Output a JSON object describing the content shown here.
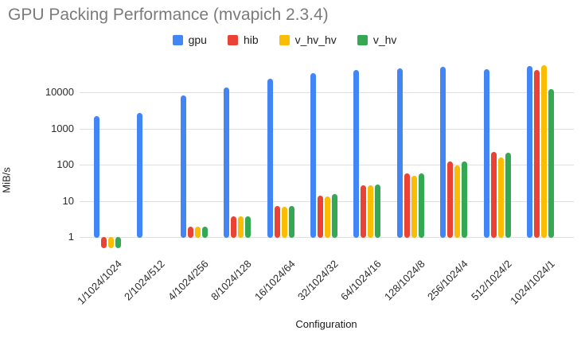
{
  "title": "GPU Packing Performance (mvapich 2.3.4)",
  "y_axis": {
    "title": "MiB/s",
    "tick_labels": [
      "1",
      "10",
      "100",
      "1000",
      "10000"
    ]
  },
  "x_axis": {
    "title": "Configuration"
  },
  "colors": {
    "gpu": "#4285F4",
    "hib": "#EA4335",
    "v_hv_hv": "#FBBC04",
    "v_hv": "#34A853",
    "title_text": "#7b7b7b",
    "gridline": "#e0e0e0",
    "background": "#ffffff"
  },
  "chart_data": {
    "type": "bar",
    "title": "GPU Packing Performance (mvapich 2.3.4)",
    "xlabel": "Configuration",
    "ylabel": "MiB/s",
    "y_scale": "log",
    "y_ticks": [
      1,
      10,
      100,
      1000,
      10000
    ],
    "ylim": [
      0.45,
      70000
    ],
    "grid": true,
    "legend_position": "top",
    "categories": [
      "1/1024/1024",
      "2/1024/512",
      "4/1024/256",
      "8/1024/128",
      "16/1024/64",
      "32/1024/32",
      "64/1024/16",
      "128/1024/8",
      "256/1024/4",
      "512/1024/2",
      "1024/1024/1"
    ],
    "series": [
      {
        "name": "gpu",
        "color": "#4285F4",
        "values": [
          2200,
          2700,
          8000,
          13500,
          24000,
          33000,
          42000,
          46000,
          50000,
          43000,
          53000
        ]
      },
      {
        "name": "hib",
        "color": "#EA4335",
        "values": [
          0.5,
          null,
          1.9,
          3.7,
          7.2,
          14,
          27,
          57,
          120,
          230,
          41000
        ]
      },
      {
        "name": "v_hv_hv",
        "color": "#FBBC04",
        "values": [
          0.5,
          null,
          1.9,
          3.7,
          7,
          13,
          27,
          50,
          95,
          160,
          55000
        ]
      },
      {
        "name": "v_hv",
        "color": "#34A853",
        "values": [
          0.5,
          null,
          1.9,
          3.7,
          7.3,
          15,
          28,
          57,
          120,
          215,
          12500
        ]
      }
    ]
  }
}
